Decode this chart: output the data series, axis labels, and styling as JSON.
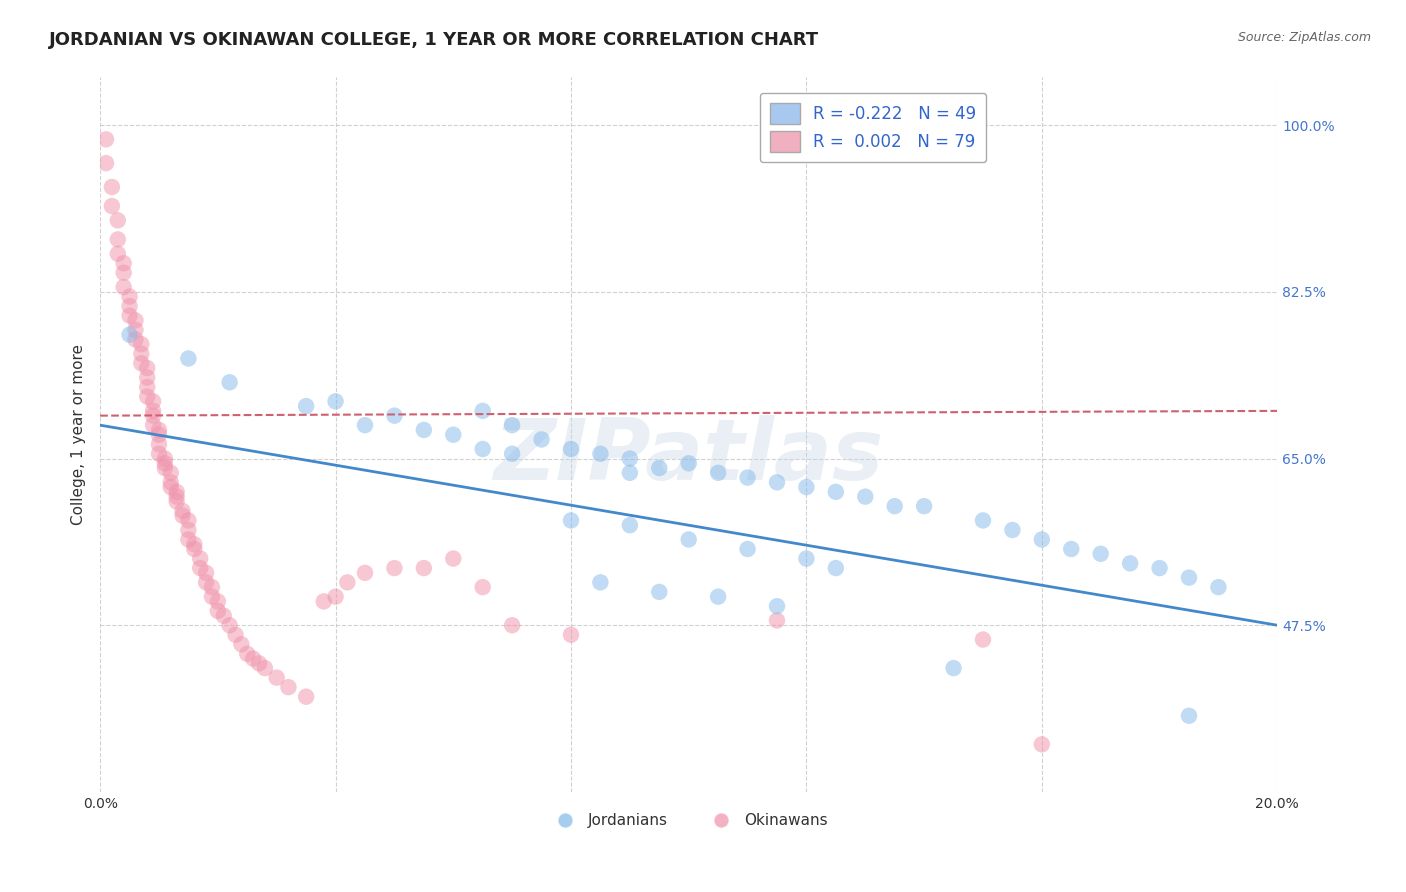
{
  "title": "JORDANIAN VS OKINAWAN COLLEGE, 1 YEAR OR MORE CORRELATION CHART",
  "source_text": "Source: ZipAtlas.com",
  "ylabel": "College, 1 year or more",
  "xlim": [
    0.0,
    0.2
  ],
  "ylim": [
    0.3,
    1.05
  ],
  "ytick_right_labels": [
    "100.0%",
    "82.5%",
    "65.0%",
    "47.5%"
  ],
  "ytick_right_values": [
    1.0,
    0.825,
    0.65,
    0.475
  ],
  "blue_line_x": [
    0.0,
    0.2
  ],
  "blue_line_y": [
    0.685,
    0.475
  ],
  "pink_line_x": [
    0.0,
    0.2
  ],
  "pink_line_y": [
    0.695,
    0.7
  ],
  "blue_scatter_x": [
    0.005,
    0.015,
    0.022,
    0.035,
    0.04,
    0.045,
    0.05,
    0.055,
    0.06,
    0.065,
    0.065,
    0.07,
    0.07,
    0.075,
    0.08,
    0.085,
    0.09,
    0.09,
    0.095,
    0.1,
    0.105,
    0.11,
    0.115,
    0.12,
    0.125,
    0.13,
    0.135,
    0.14,
    0.15,
    0.155,
    0.16,
    0.165,
    0.17,
    0.175,
    0.18,
    0.185,
    0.19,
    0.08,
    0.09,
    0.1,
    0.11,
    0.12,
    0.125,
    0.085,
    0.095,
    0.105,
    0.115,
    0.185,
    0.145
  ],
  "blue_scatter_y": [
    0.78,
    0.755,
    0.73,
    0.705,
    0.71,
    0.685,
    0.695,
    0.68,
    0.675,
    0.7,
    0.66,
    0.685,
    0.655,
    0.67,
    0.66,
    0.655,
    0.65,
    0.635,
    0.64,
    0.645,
    0.635,
    0.63,
    0.625,
    0.62,
    0.615,
    0.61,
    0.6,
    0.6,
    0.585,
    0.575,
    0.565,
    0.555,
    0.55,
    0.54,
    0.535,
    0.525,
    0.515,
    0.585,
    0.58,
    0.565,
    0.555,
    0.545,
    0.535,
    0.52,
    0.51,
    0.505,
    0.495,
    0.38,
    0.43
  ],
  "pink_scatter_x": [
    0.001,
    0.001,
    0.002,
    0.002,
    0.003,
    0.003,
    0.003,
    0.004,
    0.004,
    0.004,
    0.005,
    0.005,
    0.005,
    0.006,
    0.006,
    0.006,
    0.007,
    0.007,
    0.007,
    0.008,
    0.008,
    0.008,
    0.008,
    0.009,
    0.009,
    0.009,
    0.009,
    0.01,
    0.01,
    0.01,
    0.01,
    0.011,
    0.011,
    0.011,
    0.012,
    0.012,
    0.012,
    0.013,
    0.013,
    0.013,
    0.014,
    0.014,
    0.015,
    0.015,
    0.015,
    0.016,
    0.016,
    0.017,
    0.017,
    0.018,
    0.018,
    0.019,
    0.019,
    0.02,
    0.02,
    0.021,
    0.022,
    0.023,
    0.024,
    0.025,
    0.026,
    0.027,
    0.028,
    0.03,
    0.032,
    0.035,
    0.038,
    0.04,
    0.042,
    0.045,
    0.05,
    0.055,
    0.06,
    0.065,
    0.07,
    0.08,
    0.115,
    0.15,
    0.16
  ],
  "pink_scatter_y": [
    0.985,
    0.96,
    0.935,
    0.915,
    0.9,
    0.88,
    0.865,
    0.855,
    0.845,
    0.83,
    0.82,
    0.81,
    0.8,
    0.795,
    0.785,
    0.775,
    0.77,
    0.76,
    0.75,
    0.745,
    0.735,
    0.725,
    0.715,
    0.71,
    0.7,
    0.695,
    0.685,
    0.68,
    0.675,
    0.665,
    0.655,
    0.65,
    0.645,
    0.64,
    0.635,
    0.625,
    0.62,
    0.615,
    0.61,
    0.605,
    0.595,
    0.59,
    0.585,
    0.575,
    0.565,
    0.56,
    0.555,
    0.545,
    0.535,
    0.53,
    0.52,
    0.515,
    0.505,
    0.5,
    0.49,
    0.485,
    0.475,
    0.465,
    0.455,
    0.445,
    0.44,
    0.435,
    0.43,
    0.42,
    0.41,
    0.4,
    0.5,
    0.505,
    0.52,
    0.53,
    0.535,
    0.535,
    0.545,
    0.515,
    0.475,
    0.465,
    0.48,
    0.46,
    0.35
  ],
  "background_color": "#ffffff",
  "grid_color": "#cccccc",
  "blue_color": "#82b8e8",
  "pink_color": "#f090aa",
  "blue_line_color": "#4488cc",
  "pink_line_color": "#d06070",
  "watermark": "ZIPatlas",
  "title_fontsize": 13,
  "axis_label_fontsize": 11,
  "tick_fontsize": 10,
  "legend_blue_label": "R = -0.222   N = 49",
  "legend_pink_label": "R =  0.002   N = 79",
  "legend_blue_color": "#a8c8f0",
  "legend_pink_color": "#f0b0c0",
  "bottom_legend_jordanians": "Jordanians",
  "bottom_legend_okinawans": "Okinawans"
}
